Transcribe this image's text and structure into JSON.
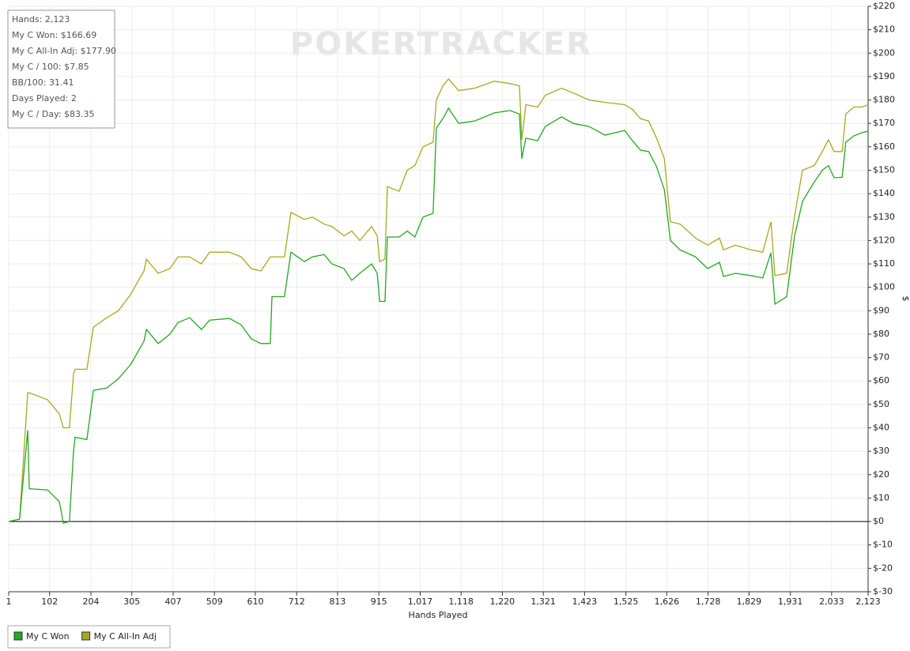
{
  "chart_data": {
    "type": "line",
    "watermark": "POKERTRACKER",
    "stats": [
      "Hands: 2,123",
      "My C Won: $166.69",
      "My C All-In Adj: $177.90",
      "My C / 100: $7.85",
      "BB/100: 31.41",
      "Days Played: 2",
      "My C / Day: $83.35"
    ],
    "xlabel": "Hands Played",
    "ylabel": "$",
    "xlim": [
      1,
      2123
    ],
    "ylim": [
      -30,
      220
    ],
    "xticks": [
      1,
      102,
      204,
      305,
      407,
      509,
      610,
      712,
      813,
      915,
      {
        "value": 1017,
        "label": "1,017"
      },
      {
        "value": 1118,
        "label": "1,118"
      },
      {
        "value": 1220,
        "label": "1,220"
      },
      {
        "value": 1321,
        "label": "1,321"
      },
      {
        "value": 1423,
        "label": "1,423"
      },
      {
        "value": 1525,
        "label": "1,525"
      },
      {
        "value": 1626,
        "label": "1,626"
      },
      {
        "value": 1728,
        "label": "1,728"
      },
      {
        "value": 1829,
        "label": "1,829"
      },
      {
        "value": 1931,
        "label": "1,931"
      },
      {
        "value": 2033,
        "label": "2,033"
      },
      {
        "value": 2123,
        "label": "2,123"
      }
    ],
    "yticks": [
      {
        "value": -30,
        "label": "$-30"
      },
      {
        "value": -20,
        "label": "$-20"
      },
      {
        "value": -10,
        "label": "$-10"
      },
      {
        "value": 0,
        "label": "$0"
      },
      {
        "value": 10,
        "label": "$10"
      },
      {
        "value": 20,
        "label": "$20"
      },
      {
        "value": 30,
        "label": "$30"
      },
      {
        "value": 40,
        "label": "$40"
      },
      {
        "value": 50,
        "label": "$50"
      },
      {
        "value": 60,
        "label": "$60"
      },
      {
        "value": 70,
        "label": "$70"
      },
      {
        "value": 80,
        "label": "$80"
      },
      {
        "value": 90,
        "label": "$90"
      },
      {
        "value": 100,
        "label": "$100"
      },
      {
        "value": 110,
        "label": "$110"
      },
      {
        "value": 120,
        "label": "$120"
      },
      {
        "value": 130,
        "label": "$130"
      },
      {
        "value": 140,
        "label": "$140"
      },
      {
        "value": 150,
        "label": "$150"
      },
      {
        "value": 160,
        "label": "$160"
      },
      {
        "value": 170,
        "label": "$170"
      },
      {
        "value": 180,
        "label": "$180"
      },
      {
        "value": 190,
        "label": "$190"
      },
      {
        "value": 200,
        "label": "$200"
      },
      {
        "value": 210,
        "label": "$210"
      },
      {
        "value": 220,
        "label": "$220"
      }
    ],
    "grid": true,
    "legend": "bottom-left",
    "x": [
      1,
      28,
      48,
      52,
      97,
      126,
      136,
      151,
      161,
      165,
      194,
      210,
      243,
      272,
      302,
      335,
      341,
      370,
      399,
      419,
      448,
      477,
      497,
      546,
      575,
      600,
      624,
      647,
      651,
      682,
      698,
      731,
      751,
      780,
      799,
      829,
      848,
      868,
      897,
      911,
      917,
      930,
      936,
      965,
      985,
      1004,
      1024,
      1049,
      1057,
      1073,
      1087,
      1112,
      1151,
      1200,
      1239,
      1262,
      1268,
      1278,
      1307,
      1326,
      1366,
      1395,
      1434,
      1473,
      1522,
      1541,
      1561,
      1581,
      1600,
      1620,
      1635,
      1659,
      1697,
      1727,
      1756,
      1766,
      1795,
      1834,
      1863,
      1883,
      1893,
      1922,
      1941,
      1961,
      1990,
      2010,
      2025,
      2039,
      2059,
      2068,
      2088,
      2107,
      2123
    ],
    "series": [
      {
        "name": "My C Won",
        "color": "#22a822",
        "values": [
          0,
          1,
          39,
          14,
          13.5,
          8.5,
          -0.7,
          0,
          30,
          36,
          35,
          56,
          57,
          61,
          67,
          77,
          82,
          76,
          80,
          85,
          87,
          82,
          86,
          86.7,
          84,
          78,
          76,
          76,
          96,
          96,
          115,
          111,
          113,
          114,
          110,
          108,
          103,
          106,
          110,
          106,
          94,
          94,
          121.5,
          121.5,
          124,
          121.5,
          130,
          131.6,
          168,
          172,
          176.5,
          170,
          171,
          174.5,
          175.5,
          174,
          155,
          163.7,
          162.6,
          168.7,
          172.8,
          170,
          168.7,
          165,
          167,
          162.6,
          158.6,
          158,
          151.8,
          141.7,
          120,
          116,
          113,
          108,
          110.7,
          104.6,
          106,
          105,
          104,
          114.7,
          92.8,
          96,
          121.5,
          136.7,
          145,
          150,
          152,
          146.8,
          147,
          162,
          164.7,
          166,
          166.69
        ]
      },
      {
        "name": "My C All-In Adj",
        "color": "#a8a81e",
        "values": [
          0,
          1,
          55,
          55,
          52,
          46,
          40,
          40,
          63,
          65,
          65,
          83,
          87,
          90,
          97,
          107,
          112,
          106,
          108,
          113,
          113,
          110,
          115,
          115,
          113,
          108,
          107,
          113,
          113,
          113,
          132,
          129,
          130,
          127,
          126,
          122,
          124,
          120,
          126,
          122,
          111,
          112,
          143,
          141,
          150,
          152,
          160,
          162,
          180,
          186,
          189,
          184,
          185,
          188,
          187,
          186,
          163,
          178,
          177,
          182,
          185,
          183,
          180,
          179,
          178,
          176,
          172,
          171,
          164,
          155,
          128,
          127,
          121,
          118,
          121,
          116,
          118,
          116,
          115,
          128,
          105,
          106,
          130,
          150,
          152,
          158,
          163,
          158,
          158,
          174,
          177,
          177,
          177.9
        ]
      }
    ]
  }
}
